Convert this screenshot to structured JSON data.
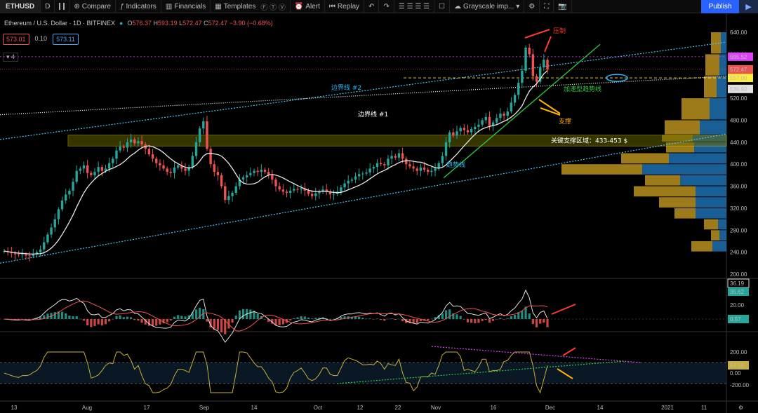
{
  "toolbar": {
    "symbol": "ETHUSD",
    "interval": "D",
    "compare": "Compare",
    "indicators": "Indicators",
    "financials": "Financials",
    "templates": "Templates",
    "alert": "Alert",
    "replay": "Replay",
    "layout_name": "Grayscale imp...",
    "publish": "Publish"
  },
  "legend": {
    "title": "Ethereum / U.S. Dollar · 1D · BITFINEX",
    "open_label": "O",
    "open": "576.37",
    "high_label": "H",
    "high": "593.19",
    "low_label": "L",
    "low": "572.47",
    "close_label": "C",
    "close": "572.47",
    "change": "−3.90 (−0.68%)",
    "sell_price": "573.01",
    "spread": "0.10",
    "buy_price": "573.11",
    "indicator_count": "4"
  },
  "colors": {
    "up": "#26a69a",
    "down": "#ef5350",
    "ma": "#e8e8e8",
    "channel": "#4fc3f7",
    "trend": "#2ecc40",
    "zone_fill": "#6b6a00",
    "zone_border": "#d4c400",
    "annotation_red": "#ff3b30",
    "annotation_yellow": "#ffb300",
    "annotation_cyan": "#29b6f6",
    "rsi_line": "#c9b037",
    "rsi_resist": "#e040fb",
    "vp_up": "#1e6fb0",
    "vp_down": "#b8901e"
  },
  "annotations": {
    "pressure": "压制",
    "boundary2": "边界线 #2",
    "boundary1": "边界线 #1",
    "accel": "加速型趋势线",
    "support": "支撑",
    "zone": "关键支撑区域：433-453 $",
    "trend": "趋势线"
  },
  "chart_data": {
    "type": "candlestick",
    "ylim": [
      200,
      640
    ],
    "y_ticks": [
      "640.00",
      "600.00",
      "560.00",
      "520.00",
      "480.00",
      "440.00",
      "400.00",
      "360.00",
      "320.00",
      "280.00",
      "240.00",
      "200.00"
    ],
    "x_ticks": [
      "13",
      "Aug",
      "17",
      "Sep",
      "14",
      "Oct",
      "12",
      "22",
      "Nov",
      "16",
      "Dec",
      "14",
      "2021",
      "11"
    ],
    "price_labels": [
      {
        "text": "595.52",
        "value": 595.52,
        "color": "#e040fb"
      },
      {
        "text": "572.47",
        "value": 572.47,
        "color": "#ef5350"
      },
      {
        "text": "557.00",
        "value": 557.0,
        "color": "#ffeb3b"
      },
      {
        "text": "536.92",
        "value": 536.92,
        "color": "#e0e0e0"
      }
    ],
    "support_zone": [
      433,
      453
    ],
    "closes": [
      242,
      240,
      238,
      236,
      235,
      236,
      234,
      233,
      236,
      240,
      245,
      258,
      272,
      285,
      300,
      318,
      334,
      345,
      352,
      368,
      388,
      392,
      398,
      384,
      380,
      386,
      395,
      388,
      392,
      402,
      410,
      425,
      432,
      430,
      440,
      445,
      438,
      442,
      436,
      428,
      418,
      410,
      402,
      398,
      392,
      386,
      384,
      394,
      398,
      392,
      388,
      395,
      415,
      440,
      465,
      478,
      428,
      400,
      386,
      380,
      360,
      335,
      342,
      348,
      360,
      372,
      376,
      380,
      384,
      388,
      386,
      390,
      386,
      380,
      372,
      360,
      354,
      350,
      348,
      352,
      355,
      354,
      356,
      352,
      346,
      342,
      347,
      350,
      354,
      350,
      345,
      346,
      350,
      358,
      365,
      370,
      372,
      378,
      382,
      383,
      385,
      392,
      395,
      402,
      400,
      398,
      410,
      415,
      412,
      420,
      410,
      400,
      396,
      392,
      388,
      394,
      390,
      386,
      388,
      392,
      402,
      415,
      440,
      458,
      452,
      460,
      466,
      462,
      458,
      464,
      468,
      472,
      480,
      486,
      470,
      476,
      484,
      492,
      488,
      496,
      512,
      526,
      548,
      570,
      612,
      600,
      560,
      550,
      576,
      590,
      572
    ],
    "macd": {
      "axis_labels": [
        "20.00",
        "0.00"
      ],
      "labels": [
        {
          "text": "36.19",
          "color": "#e0e0e0"
        },
        {
          "text": "35.62",
          "color": "#26a69a"
        },
        {
          "text": "0.57",
          "color": "#26a69a"
        }
      ]
    },
    "rsi": {
      "axis_labels": [
        "200.00",
        "0.00",
        "-200.00"
      ],
      "label": "64.59"
    }
  }
}
